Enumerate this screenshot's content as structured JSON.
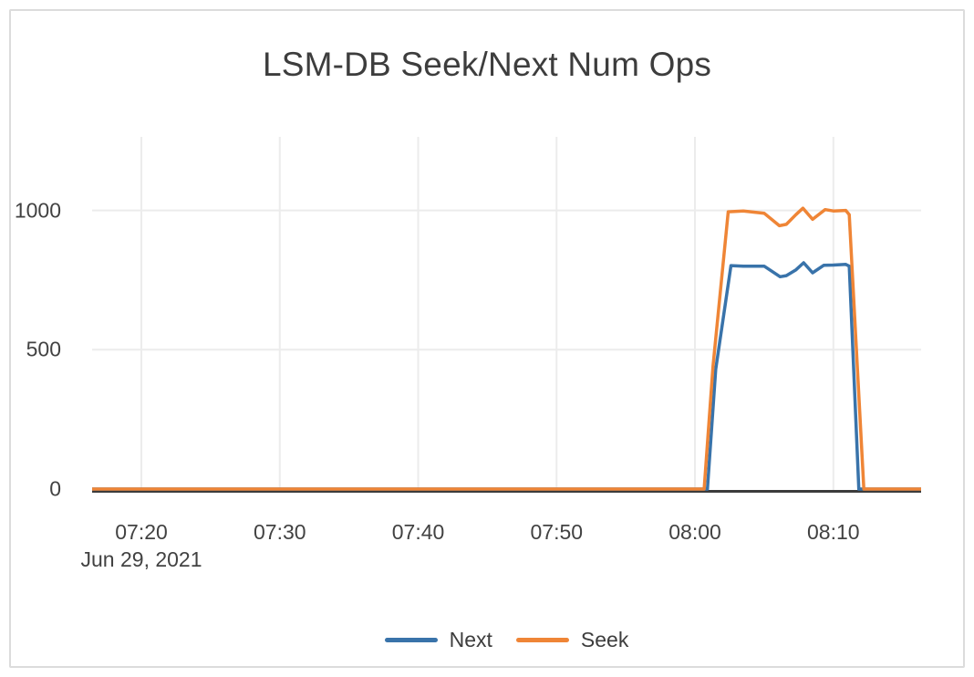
{
  "frame": {
    "border_color": "#dcdcdc",
    "background_color": "#ffffff"
  },
  "text_color": "#3d3d3d",
  "chart_data": {
    "type": "line",
    "title": "LSM-DB Seek/Next Num Ops",
    "grid": true,
    "gridline_color": "#ececec",
    "zeroline_color": "#3b3b3b",
    "legend_position": "bottom-center",
    "x_axis": {
      "date_label": "Jun 29, 2021",
      "tick_labels": [
        "07:20",
        "07:30",
        "07:40",
        "07:50",
        "08:00",
        "08:10"
      ],
      "tick_minutes": [
        20,
        30,
        40,
        50,
        60,
        70
      ],
      "range_minutes_after_0700": [
        16.44,
        76.34
      ]
    },
    "y_axis": {
      "tick_labels": [
        "0",
        "500",
        "1000"
      ],
      "tick_values": [
        0,
        500,
        1000
      ],
      "range": [
        0,
        1265
      ]
    },
    "series": [
      {
        "name": "Next",
        "color": "#3973aa",
        "points": [
          [
            16.44,
            0
          ],
          [
            20,
            0
          ],
          [
            25,
            0
          ],
          [
            30,
            0
          ],
          [
            35,
            0
          ],
          [
            40,
            0
          ],
          [
            45,
            0
          ],
          [
            50,
            0
          ],
          [
            55,
            0
          ],
          [
            60,
            0
          ],
          [
            60.9,
            0
          ],
          [
            61.5,
            430
          ],
          [
            62.6,
            802
          ],
          [
            63.5,
            800
          ],
          [
            65.0,
            800
          ],
          [
            66.15,
            762
          ],
          [
            66.6,
            766
          ],
          [
            67.3,
            787
          ],
          [
            67.85,
            812
          ],
          [
            68.5,
            776
          ],
          [
            69.3,
            803
          ],
          [
            70.0,
            804
          ],
          [
            70.9,
            806
          ],
          [
            71.15,
            800
          ],
          [
            71.84,
            0
          ],
          [
            73,
            0
          ],
          [
            76.34,
            0
          ]
        ]
      },
      {
        "name": "Seek",
        "color": "#ef8536",
        "points": [
          [
            16.44,
            0
          ],
          [
            20,
            0
          ],
          [
            25,
            0
          ],
          [
            30,
            0
          ],
          [
            35,
            0
          ],
          [
            40,
            0
          ],
          [
            45,
            0
          ],
          [
            50,
            0
          ],
          [
            55,
            0
          ],
          [
            60,
            0
          ],
          [
            60.66,
            0
          ],
          [
            61.3,
            440
          ],
          [
            62.4,
            995
          ],
          [
            63.5,
            998
          ],
          [
            65.0,
            990
          ],
          [
            66.1,
            945
          ],
          [
            66.6,
            950
          ],
          [
            67.3,
            985
          ],
          [
            67.8,
            1008
          ],
          [
            68.5,
            968
          ],
          [
            69.4,
            1003
          ],
          [
            70.0,
            998
          ],
          [
            70.9,
            1000
          ],
          [
            71.15,
            985
          ],
          [
            72.2,
            0
          ],
          [
            74,
            0
          ],
          [
            76.34,
            0
          ]
        ]
      }
    ]
  }
}
